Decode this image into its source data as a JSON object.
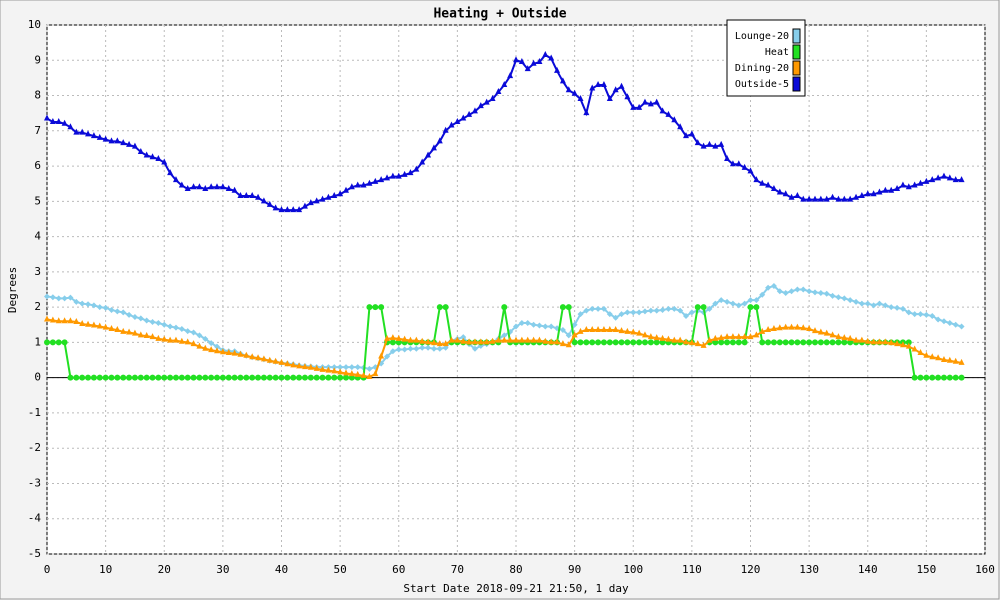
{
  "chart_data": {
    "type": "line",
    "title": "Heating + Outside",
    "xlabel": "Start Date 2018-09-21 21:50, 1 day",
    "ylabel": "Degrees",
    "x": [
      0,
      1,
      2,
      3,
      4,
      5,
      6,
      7,
      8,
      9,
      10,
      11,
      12,
      13,
      14,
      15,
      16,
      17,
      18,
      19,
      20,
      21,
      22,
      23,
      24,
      25,
      26,
      27,
      28,
      29,
      30,
      31,
      32,
      33,
      34,
      35,
      36,
      37,
      38,
      39,
      40,
      41,
      42,
      43,
      44,
      45,
      46,
      47,
      48,
      49,
      50,
      51,
      52,
      53,
      54,
      55,
      56,
      57,
      58,
      59,
      60,
      61,
      62,
      63,
      64,
      65,
      66,
      67,
      68,
      69,
      70,
      71,
      72,
      73,
      74,
      75,
      76,
      77,
      78,
      79,
      80,
      81,
      82,
      83,
      84,
      85,
      86,
      87,
      88,
      89,
      90,
      91,
      92,
      93,
      94,
      95,
      96,
      97,
      98,
      99,
      100,
      101,
      102,
      103,
      104,
      105,
      106,
      107,
      108,
      109,
      110,
      111,
      112,
      113,
      114,
      115,
      116,
      117,
      118,
      119,
      120,
      121,
      122,
      123,
      124,
      125,
      126,
      127,
      128,
      129,
      130,
      131,
      132,
      133,
      134,
      135,
      136,
      137,
      138,
      139,
      140,
      141,
      142,
      143,
      144,
      145,
      146,
      147,
      148,
      149,
      150,
      151,
      152,
      153,
      154,
      155,
      156
    ],
    "series": [
      {
        "name": "Lounge-20",
        "color": "#87ceeb",
        "marker": "diamond",
        "values": [
          2.3,
          2.28,
          2.25,
          2.25,
          2.27,
          2.15,
          2.1,
          2.08,
          2.05,
          2.0,
          1.98,
          1.92,
          1.88,
          1.85,
          1.78,
          1.72,
          1.68,
          1.62,
          1.58,
          1.55,
          1.5,
          1.45,
          1.42,
          1.38,
          1.32,
          1.28,
          1.2,
          1.1,
          0.98,
          0.88,
          0.78,
          0.75,
          0.75,
          0.68,
          0.62,
          0.58,
          0.55,
          0.52,
          0.48,
          0.45,
          0.42,
          0.4,
          0.38,
          0.35,
          0.33,
          0.32,
          0.3,
          0.3,
          0.3,
          0.3,
          0.3,
          0.3,
          0.3,
          0.3,
          0.28,
          0.25,
          0.3,
          0.4,
          0.6,
          0.75,
          0.8,
          0.8,
          0.82,
          0.82,
          0.85,
          0.85,
          0.82,
          0.82,
          0.85,
          1.05,
          1.1,
          1.15,
          0.95,
          0.82,
          0.9,
          0.95,
          1.0,
          1.1,
          1.2,
          1.3,
          1.45,
          1.55,
          1.55,
          1.5,
          1.48,
          1.45,
          1.45,
          1.4,
          1.35,
          1.2,
          1.5,
          1.8,
          1.9,
          1.95,
          1.95,
          1.95,
          1.8,
          1.7,
          1.8,
          1.85,
          1.85,
          1.85,
          1.88,
          1.9,
          1.9,
          1.92,
          1.95,
          1.95,
          1.9,
          1.75,
          1.85,
          1.9,
          1.85,
          1.95,
          2.1,
          2.2,
          2.15,
          2.1,
          2.05,
          2.1,
          2.2,
          2.2,
          2.35,
          2.55,
          2.6,
          2.45,
          2.4,
          2.45,
          2.5,
          2.5,
          2.45,
          2.42,
          2.4,
          2.38,
          2.32,
          2.28,
          2.25,
          2.2,
          2.15,
          2.1,
          2.1,
          2.05,
          2.1,
          2.05,
          2.0,
          1.98,
          1.95,
          1.85,
          1.8,
          1.8,
          1.78,
          1.75,
          1.65,
          1.6,
          1.55,
          1.5,
          1.45
        ]
      },
      {
        "name": "Heat",
        "color": "#22e022",
        "marker": "circle",
        "values": [
          1,
          1,
          1,
          1,
          0,
          0,
          0,
          0,
          0,
          0,
          0,
          0,
          0,
          0,
          0,
          0,
          0,
          0,
          0,
          0,
          0,
          0,
          0,
          0,
          0,
          0,
          0,
          0,
          0,
          0,
          0,
          0,
          0,
          0,
          0,
          0,
          0,
          0,
          0,
          0,
          0,
          0,
          0,
          0,
          0,
          0,
          0,
          0,
          0,
          0,
          0,
          0,
          0,
          0,
          0,
          2,
          2,
          2,
          1,
          1,
          1,
          1,
          1,
          1,
          1,
          1,
          1,
          2,
          2,
          1,
          1,
          1,
          1,
          1,
          1,
          1,
          1,
          1,
          2,
          1,
          1,
          1,
          1,
          1,
          1,
          1,
          1,
          1,
          2,
          2,
          1,
          1,
          1,
          1,
          1,
          1,
          1,
          1,
          1,
          1,
          1,
          1,
          1,
          1,
          1,
          1,
          1,
          1,
          1,
          1,
          1,
          2,
          2,
          1,
          1,
          1,
          1,
          1,
          1,
          1,
          2,
          2,
          1,
          1,
          1,
          1,
          1,
          1,
          1,
          1,
          1,
          1,
          1,
          1,
          1,
          1,
          1,
          1,
          1,
          1,
          1,
          1,
          1,
          1,
          1,
          1,
          1,
          1,
          0,
          0,
          0,
          0,
          0,
          0,
          0,
          0,
          0
        ]
      },
      {
        "name": "Dining-20",
        "color": "#ff9900",
        "marker": "triangle",
        "values": [
          1.65,
          1.62,
          1.6,
          1.6,
          1.6,
          1.58,
          1.52,
          1.5,
          1.48,
          1.45,
          1.42,
          1.38,
          1.35,
          1.3,
          1.28,
          1.25,
          1.2,
          1.18,
          1.15,
          1.1,
          1.08,
          1.05,
          1.05,
          1.02,
          1.0,
          0.95,
          0.88,
          0.82,
          0.78,
          0.75,
          0.72,
          0.7,
          0.68,
          0.65,
          0.62,
          0.58,
          0.55,
          0.52,
          0.48,
          0.45,
          0.42,
          0.38,
          0.35,
          0.32,
          0.3,
          0.28,
          0.25,
          0.22,
          0.2,
          0.18,
          0.15,
          0.12,
          0.1,
          0.08,
          0.05,
          0.02,
          0.1,
          0.6,
          1.1,
          1.12,
          1.1,
          1.08,
          1.05,
          1.05,
          1.02,
          1.0,
          0.98,
          0.95,
          0.95,
          1.05,
          1.05,
          1.02,
          1.0,
          1.0,
          1.0,
          1.0,
          1.02,
          1.05,
          1.05,
          1.05,
          1.05,
          1.05,
          1.05,
          1.05,
          1.05,
          1.02,
          1.0,
          1.0,
          0.95,
          0.92,
          1.2,
          1.3,
          1.35,
          1.35,
          1.35,
          1.35,
          1.35,
          1.35,
          1.32,
          1.3,
          1.28,
          1.25,
          1.2,
          1.15,
          1.12,
          1.1,
          1.08,
          1.05,
          1.05,
          1.0,
          0.98,
          0.95,
          0.9,
          1.05,
          1.1,
          1.12,
          1.15,
          1.15,
          1.15,
          1.15,
          1.15,
          1.2,
          1.3,
          1.35,
          1.38,
          1.4,
          1.42,
          1.42,
          1.42,
          1.4,
          1.38,
          1.32,
          1.28,
          1.25,
          1.2,
          1.15,
          1.12,
          1.1,
          1.05,
          1.05,
          1.02,
          1.0,
          1.0,
          1.0,
          0.98,
          0.95,
          0.92,
          0.88,
          0.8,
          0.7,
          0.62,
          0.58,
          0.55,
          0.5,
          0.48,
          0.45,
          0.42
        ]
      },
      {
        "name": "Outside-5",
        "color": "#0a0ad8",
        "marker": "triangle",
        "values": [
          7.35,
          7.25,
          7.25,
          7.2,
          7.1,
          6.95,
          6.95,
          6.9,
          6.85,
          6.8,
          6.75,
          6.7,
          6.7,
          6.65,
          6.6,
          6.55,
          6.4,
          6.3,
          6.25,
          6.2,
          6.1,
          5.8,
          5.6,
          5.45,
          5.35,
          5.4,
          5.4,
          5.35,
          5.4,
          5.4,
          5.4,
          5.35,
          5.3,
          5.15,
          5.15,
          5.15,
          5.1,
          5.0,
          4.9,
          4.8,
          4.75,
          4.75,
          4.75,
          4.75,
          4.85,
          4.95,
          5.0,
          5.05,
          5.1,
          5.15,
          5.2,
          5.3,
          5.4,
          5.45,
          5.45,
          5.5,
          5.55,
          5.6,
          5.65,
          5.7,
          5.7,
          5.75,
          5.8,
          5.9,
          6.1,
          6.3,
          6.5,
          6.7,
          7.0,
          7.15,
          7.25,
          7.35,
          7.45,
          7.55,
          7.7,
          7.8,
          7.9,
          8.1,
          8.3,
          8.55,
          9.0,
          8.95,
          8.75,
          8.9,
          8.95,
          9.15,
          9.05,
          8.7,
          8.4,
          8.15,
          8.05,
          7.9,
          7.5,
          8.2,
          8.3,
          8.3,
          7.9,
          8.15,
          8.25,
          7.95,
          7.65,
          7.65,
          7.8,
          7.75,
          7.8,
          7.55,
          7.45,
          7.3,
          7.1,
          6.85,
          6.9,
          6.65,
          6.55,
          6.6,
          6.55,
          6.6,
          6.2,
          6.05,
          6.05,
          5.95,
          5.85,
          5.6,
          5.5,
          5.45,
          5.35,
          5.25,
          5.2,
          5.1,
          5.15,
          5.05,
          5.05,
          5.05,
          5.05,
          5.05,
          5.1,
          5.05,
          5.05,
          5.05,
          5.1,
          5.15,
          5.2,
          5.2,
          5.25,
          5.3,
          5.3,
          5.35,
          5.45,
          5.4,
          5.45,
          5.5,
          5.55,
          5.6,
          5.65,
          5.7,
          5.65,
          5.6,
          5.6
        ]
      }
    ],
    "xlim": [
      0,
      160
    ],
    "xticks": [
      0,
      10,
      20,
      30,
      40,
      50,
      60,
      70,
      80,
      90,
      100,
      110,
      120,
      130,
      140,
      150,
      160
    ],
    "ylim": [
      -5,
      10
    ],
    "yticks": [
      -5,
      -4,
      -3,
      -2,
      -1,
      0,
      1,
      2,
      3,
      4,
      5,
      6,
      7,
      8,
      9,
      10
    ],
    "grid": true,
    "legend": "upper right"
  }
}
